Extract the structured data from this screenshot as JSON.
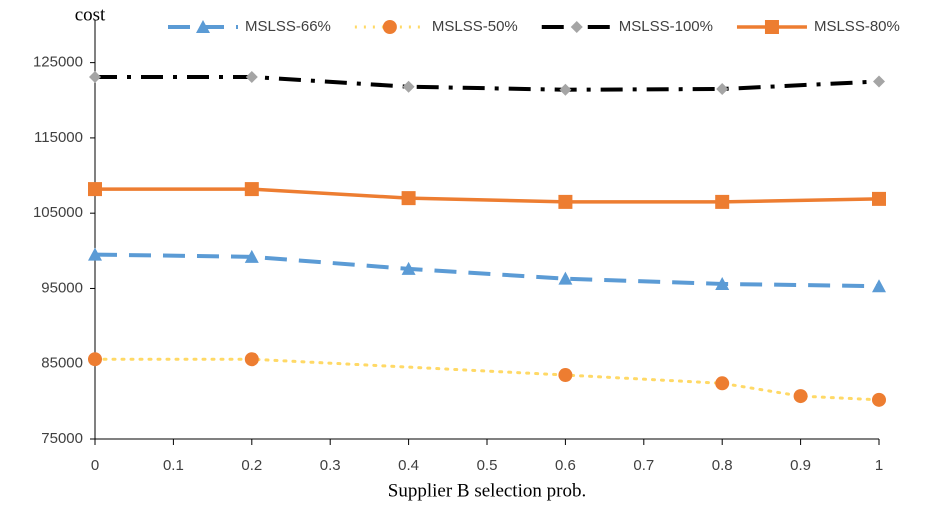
{
  "chart_data": {
    "type": "line",
    "y_label": "cost",
    "x_label": "Supplier B selection prob.",
    "xlim": [
      0,
      1
    ],
    "xticks": [
      0,
      0.1,
      0.2,
      0.3,
      0.4,
      0.5,
      0.6,
      0.7,
      0.8,
      0.9,
      1
    ],
    "ylim": [
      75000,
      130000
    ],
    "yticks": [
      75000,
      85000,
      95000,
      105000,
      115000,
      125000
    ],
    "grid": false,
    "legend": "top",
    "series": [
      {
        "name": "MSLSS-66%",
        "color": "#5b9bd5",
        "marker_color": "#5b9bd5",
        "line_style": "dash",
        "marker": "triangle",
        "x": [
          0,
          0.2,
          0.4,
          0.6,
          0.8,
          1
        ],
        "values": [
          99500,
          99200,
          97600,
          96300,
          95600,
          95300
        ]
      },
      {
        "name": "MSLSS-50%",
        "color": "#ffd966",
        "marker_color": "#ed7d31",
        "line_style": "dot",
        "marker": "circle",
        "x": [
          0,
          0.2,
          0.6,
          0.8,
          0.9,
          1
        ],
        "values": [
          85600,
          85600,
          83500,
          82400,
          80700,
          80200
        ]
      },
      {
        "name": "MSLSS-100%",
        "color": "#000000",
        "marker_color": "#a5a5a5",
        "line_style": "dashdot",
        "marker": "diamond",
        "x": [
          0,
          0.2,
          0.4,
          0.6,
          0.8,
          1
        ],
        "values": [
          123100,
          123100,
          121800,
          121400,
          121500,
          122500
        ]
      },
      {
        "name": "MSLSS-80%",
        "color": "#ed7d31",
        "marker_color": "#ed7d31",
        "line_style": "solid",
        "marker": "square",
        "x": [
          0,
          0.2,
          0.4,
          0.6,
          0.8,
          1
        ],
        "values": [
          108200,
          108200,
          107000,
          106500,
          106500,
          106900
        ]
      }
    ]
  }
}
